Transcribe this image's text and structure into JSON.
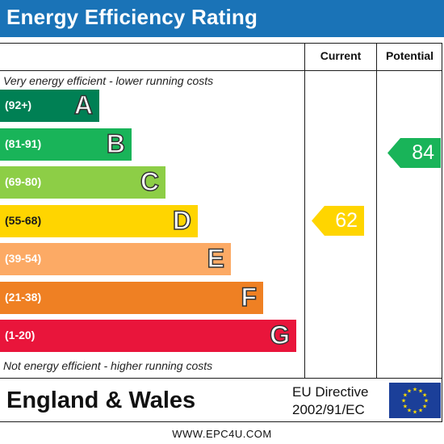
{
  "title": "Energy Efficiency Rating",
  "columns": {
    "current": "Current",
    "potential": "Potential"
  },
  "notes": {
    "top": "Very energy efficient - lower running costs",
    "bottom": "Not energy efficient - higher running costs"
  },
  "bands": [
    {
      "range": "(92+)",
      "letter": "A",
      "color": "#008054"
    },
    {
      "range": "(81-91)",
      "letter": "B",
      "color": "#19b459"
    },
    {
      "range": "(69-80)",
      "letter": "C",
      "color": "#8dce46"
    },
    {
      "range": "(55-68)",
      "letter": "D",
      "color": "#ffd500"
    },
    {
      "range": "(39-54)",
      "letter": "E",
      "color": "#fcaa65"
    },
    {
      "range": "(21-38)",
      "letter": "F",
      "color": "#ef8023"
    },
    {
      "range": "(1-20)",
      "letter": "G",
      "color": "#e9153b"
    }
  ],
  "ratings": {
    "current": {
      "value": "62",
      "band": "D",
      "color": "#ffd500"
    },
    "potential": {
      "value": "84",
      "band": "B",
      "color": "#19b459"
    }
  },
  "footer": {
    "region": "England & Wales",
    "directive_line1": "EU Directive",
    "directive_line2": "2002/91/EC",
    "website": "WWW.EPC4U.COM"
  }
}
